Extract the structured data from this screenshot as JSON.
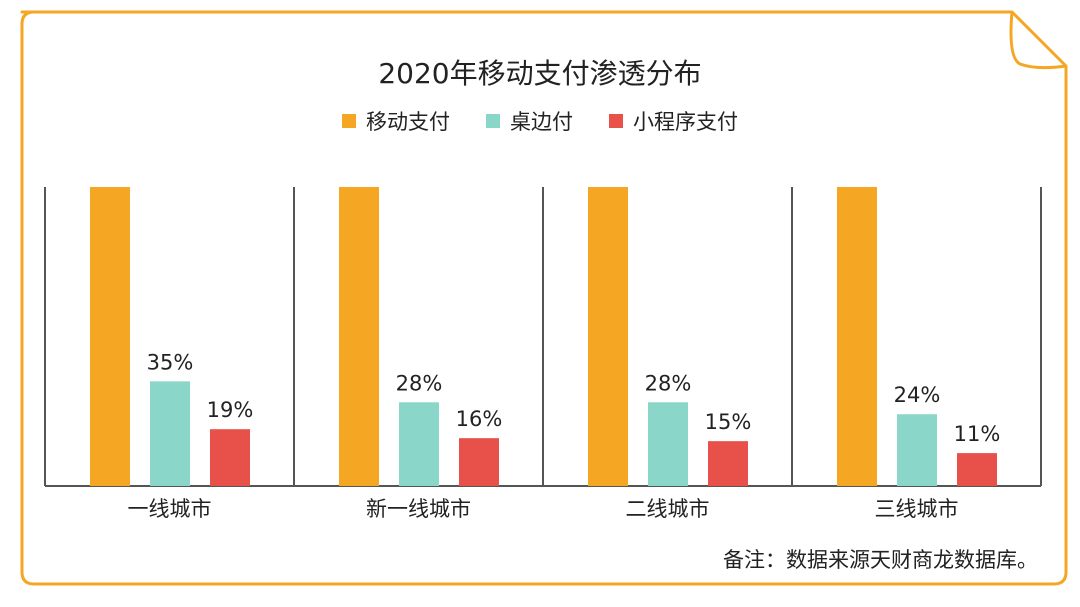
{
  "title": "2020年移动支付渗透分布",
  "note": "备注：数据来源天财商龙数据库。",
  "colors": {
    "frame": "#F5A623",
    "axis": "#555555"
  },
  "legend": [
    {
      "label": "移动支付",
      "color": "#F5A623"
    },
    {
      "label": "桌边付",
      "color": "#8AD6C8"
    },
    {
      "label": "小程序支付",
      "color": "#E8504A"
    }
  ],
  "chart_data": {
    "type": "bar",
    "title": "2020年移动支付渗透分布",
    "xlabel": "",
    "ylabel": "",
    "ylim": [
      0,
      100
    ],
    "grid": false,
    "legend_position": "top-center",
    "categories": [
      "一线城市",
      "新一线城市",
      "二线城市",
      "三线城市"
    ],
    "series": [
      {
        "name": "移动支付",
        "color": "#F5A623",
        "values": [
          100,
          100,
          100,
          100
        ],
        "labels": [
          "",
          "",
          "",
          ""
        ]
      },
      {
        "name": "桌边付",
        "color": "#8AD6C8",
        "values": [
          35,
          28,
          28,
          24
        ],
        "labels": [
          "35%",
          "28%",
          "28%",
          "24%"
        ]
      },
      {
        "name": "小程序支付",
        "color": "#E8504A",
        "values": [
          19,
          16,
          15,
          11
        ],
        "labels": [
          "19%",
          "16%",
          "15%",
          "11%"
        ]
      }
    ]
  }
}
